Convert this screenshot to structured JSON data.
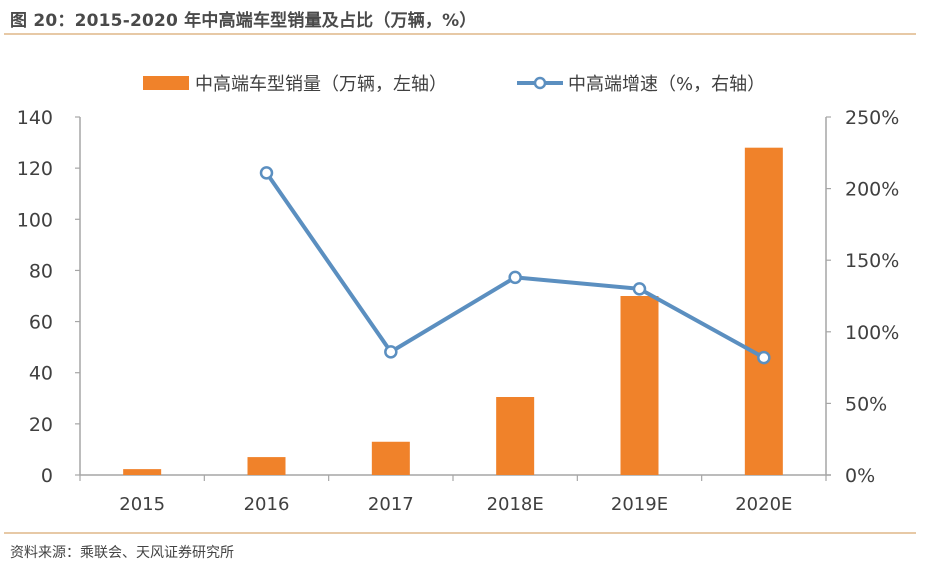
{
  "header": {
    "title": "图 20：2015-2020 年中高端车型销量及占比（万辆，%）"
  },
  "footer": {
    "source": "资料来源：乘联会、天风证券研究所"
  },
  "colors": {
    "bar": "#f0822a",
    "line": "#5b8fc0",
    "axis": "#a6a6a6",
    "text": "#404040",
    "rule": "#e7c9a6"
  },
  "chart_data": {
    "type": "bar+line",
    "title": "2015-2020 年中高端车型销量及占比（万辆，%）",
    "categories": [
      "2015",
      "2016",
      "2017",
      "2018E",
      "2019E",
      "2020E"
    ],
    "series": [
      {
        "name": "中高端车型销量（万辆，左轴）",
        "type": "bar",
        "axis": "left",
        "values": [
          2.3,
          7,
          13,
          30.5,
          70,
          128
        ]
      },
      {
        "name": "中高端增速（%，右轴）",
        "type": "line",
        "axis": "right",
        "values": [
          null,
          211,
          86,
          138,
          130,
          82
        ]
      }
    ],
    "left_axis": {
      "ylim": [
        0,
        140
      ],
      "ticks": [
        "0",
        "20",
        "40",
        "60",
        "80",
        "100",
        "120",
        "140"
      ]
    },
    "right_axis": {
      "ylim": [
        0,
        250
      ],
      "ticks": [
        "0%",
        "50%",
        "100%",
        "150%",
        "200%",
        "250%"
      ]
    },
    "xlabel": "",
    "ylabel": "",
    "grid": false,
    "legend_position": "top"
  }
}
